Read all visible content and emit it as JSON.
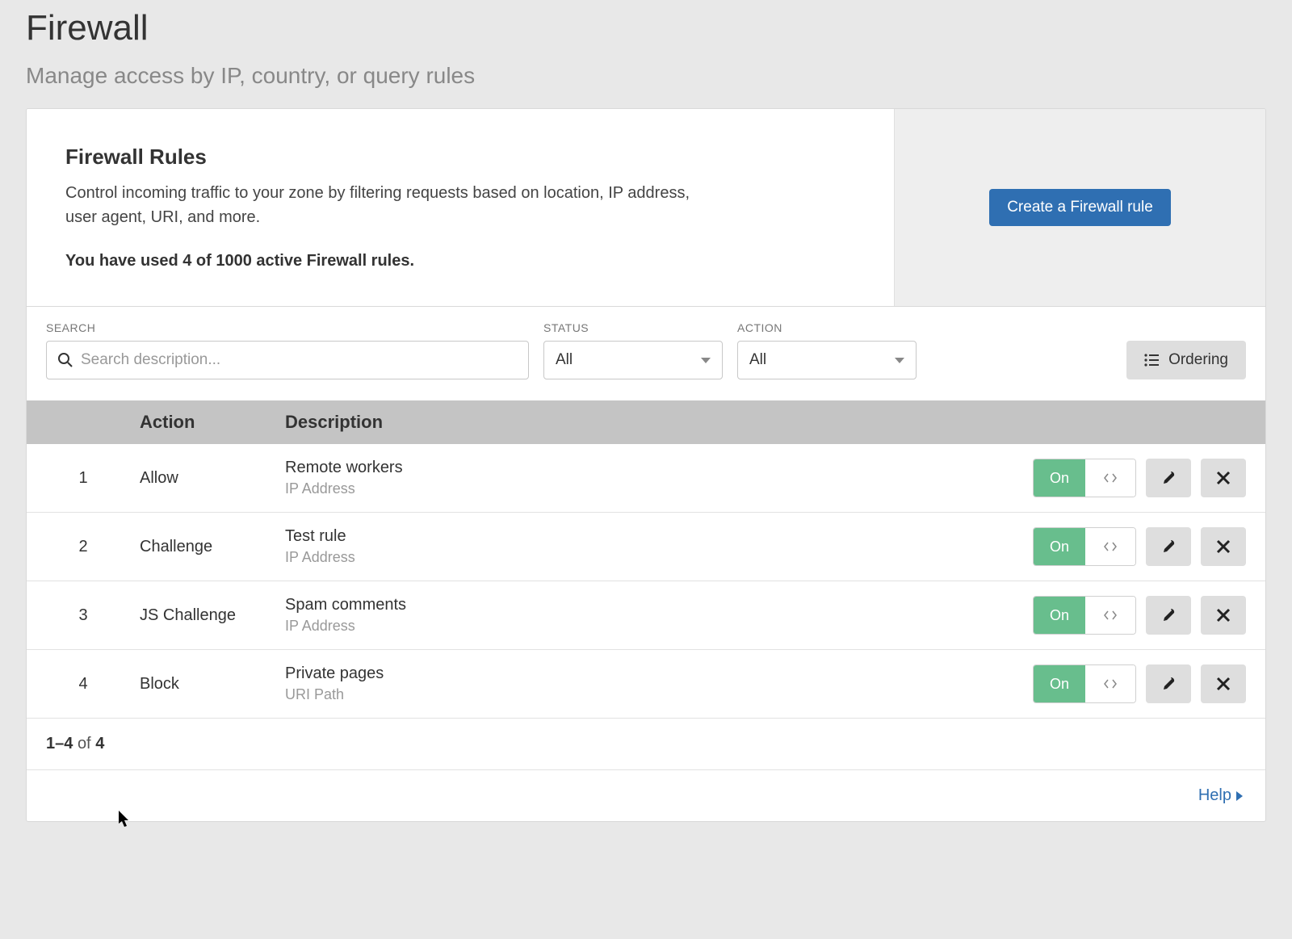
{
  "colors": {
    "page_bg": "#e8e8e8",
    "card_bg": "#ffffff",
    "card_side_bg": "#eeeeee",
    "primary_btn": "#2f6fb2",
    "toggle_on": "#68be8d",
    "grey_btn": "#dedede",
    "header_bar": "#c4c4c4",
    "text": "#333333",
    "text_muted": "#888888",
    "border": "#d9d9d9"
  },
  "page": {
    "title": "Firewall",
    "subtitle": "Manage access by IP, country, or query rules"
  },
  "panel": {
    "title": "Firewall Rules",
    "description": "Control incoming traffic to your zone by filtering requests based on location, IP address, user agent, URI, and more.",
    "usage": "You have used 4 of 1000 active Firewall rules.",
    "create_button": "Create a Firewall rule"
  },
  "filters": {
    "search_label": "SEARCH",
    "search_placeholder": "Search description...",
    "status_label": "STATUS",
    "status_value": "All",
    "action_label": "ACTION",
    "action_value": "All",
    "ordering_label": "Ordering"
  },
  "table": {
    "headers": {
      "action": "Action",
      "description": "Description"
    },
    "rows": [
      {
        "n": "1",
        "action": "Allow",
        "title": "Remote workers",
        "sub": "IP Address",
        "toggle": "On"
      },
      {
        "n": "2",
        "action": "Challenge",
        "title": "Test rule",
        "sub": "IP Address",
        "toggle": "On"
      },
      {
        "n": "3",
        "action": "JS Challenge",
        "title": "Spam comments",
        "sub": "IP Address",
        "toggle": "On"
      },
      {
        "n": "4",
        "action": "Block",
        "title": "Private pages",
        "sub": "URI Path",
        "toggle": "On"
      }
    ]
  },
  "pagination": {
    "range": "1–4",
    "of_word": "of",
    "total": "4"
  },
  "footer": {
    "help": "Help"
  }
}
